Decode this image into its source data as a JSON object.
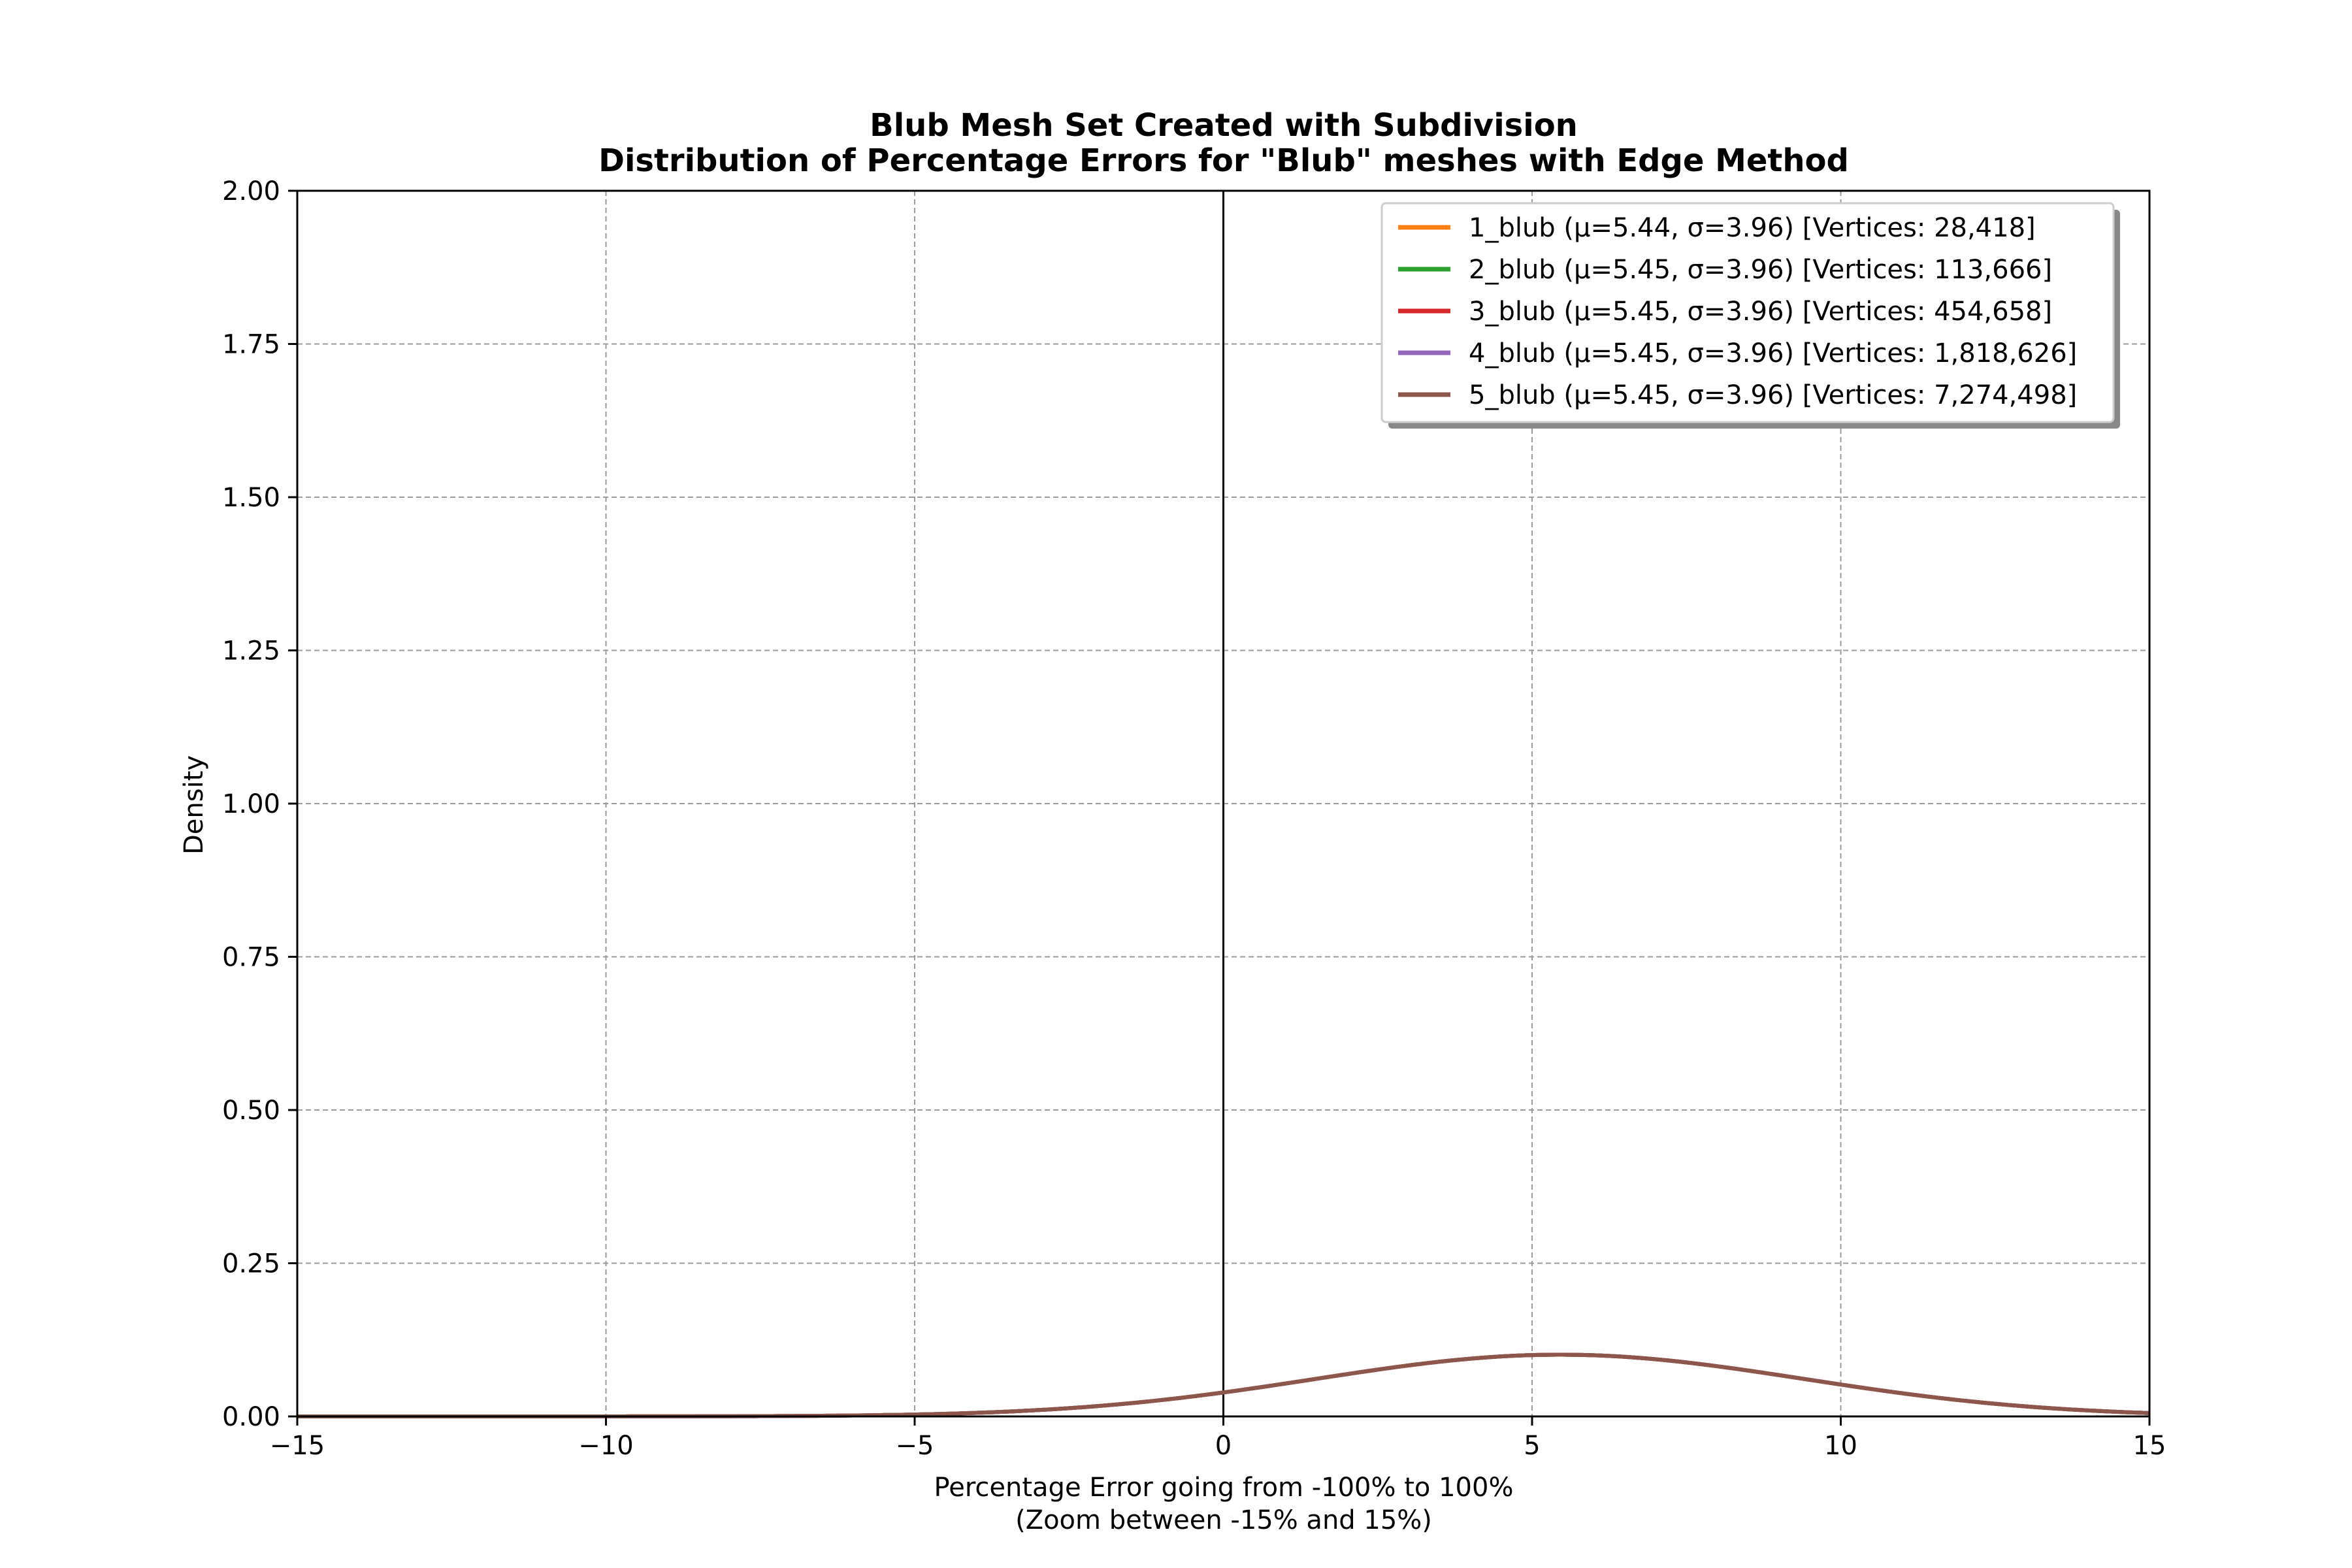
{
  "chart_data": {
    "type": "line",
    "title_line1": "Blub Mesh Set Created with Subdivision",
    "title_line2": "Distribution of Percentage Errors for \"Blub\" meshes with Edge Method",
    "xlabel_line1": "Percentage Error going from -100% to 100%",
    "xlabel_line2": "(Zoom between -15% and 15%)",
    "ylabel": "Density",
    "xlim": [
      -15,
      15
    ],
    "ylim": [
      0,
      2.0
    ],
    "x_ticks": [
      -15,
      -10,
      -5,
      0,
      5,
      10,
      15
    ],
    "x_tick_labels": [
      "−15",
      "−10",
      "−5",
      "0",
      "5",
      "10",
      "15"
    ],
    "y_ticks": [
      0.0,
      0.25,
      0.5,
      0.75,
      1.0,
      1.25,
      1.5,
      1.75,
      2.0
    ],
    "y_tick_labels": [
      "0.00",
      "0.25",
      "0.50",
      "0.75",
      "1.00",
      "1.25",
      "1.50",
      "1.75",
      "2.00"
    ],
    "grid": true,
    "grid_style": "dashed",
    "vertical_reference_line_x": 0,
    "legend_position": "top-right",
    "series": [
      {
        "name": "1_blub (μ=5.44, σ=3.96) [Vertices: 28,418]",
        "color": "#ff7f0e",
        "mu": 5.44,
        "sigma": 3.96
      },
      {
        "name": "2_blub (μ=5.45, σ=3.96) [Vertices: 113,666]",
        "color": "#2ca02c",
        "mu": 5.45,
        "sigma": 3.96
      },
      {
        "name": "3_blub (μ=5.45, σ=3.96) [Vertices: 454,658]",
        "color": "#d62728",
        "mu": 5.45,
        "sigma": 3.96
      },
      {
        "name": "4_blub (μ=5.45, σ=3.96) [Vertices: 1,818,626]",
        "color": "#9467bd",
        "mu": 5.45,
        "sigma": 3.96
      },
      {
        "name": "5_blub (μ=5.45, σ=3.96) [Vertices: 7,274,498]",
        "color": "#8c564b",
        "mu": 5.45,
        "sigma": 3.96
      }
    ]
  }
}
